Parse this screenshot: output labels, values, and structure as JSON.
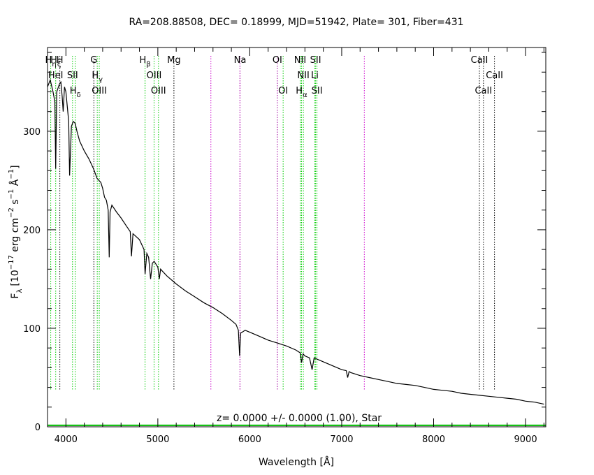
{
  "chart_data": {
    "type": "line",
    "title": "RA=208.88508, DEC= 0.18999, MJD=51942, Plate= 301, Fiber=431",
    "xlabel": "Wavelength [Å]",
    "ylabel": "F_λ [10^-17 erg cm^-2 s^-1 Å^-1]",
    "ylabel_parts": {
      "f": "F",
      "f_sub": "λ",
      "pre": "[10",
      "exp1": "−17",
      "mid": " erg cm",
      "exp2": "−2",
      "mid2": " s",
      "exp3": "−1",
      "mid3": " Å",
      "exp4": "−1",
      "end": "]"
    },
    "xlim": [
      3800,
      9220
    ],
    "ylim": [
      0,
      385
    ],
    "x_ticks": [
      4000,
      5000,
      6000,
      7000,
      8000,
      9000
    ],
    "y_ticks": [
      0,
      100,
      200,
      300
    ],
    "x_tick_labels": [
      "4000",
      "5000",
      "6000",
      "7000",
      "8000",
      "9000"
    ],
    "y_tick_labels": [
      "0",
      "100",
      "200",
      "300"
    ],
    "annotation": "z= 0.0000 +/- 0.0000 (1.00), Star",
    "colors": {
      "spectrum": "#000000",
      "model": "#00bb00",
      "emission": "#00cc00",
      "absorption": "#000000",
      "sky": "#cc00cc"
    },
    "lines": [
      {
        "label": "H",
        "sub": "η",
        "wavelength": 3835,
        "kind": "emission",
        "row": 0
      },
      {
        "label": "H",
        "sub": "ζ",
        "wavelength": 3889,
        "kind": "emission",
        "row": 0
      },
      {
        "label": "H",
        "sub": "",
        "wavelength": 3934,
        "kind": "absorption",
        "row": 0
      },
      {
        "label": "HeI",
        "sub": "",
        "wavelength": 3889,
        "kind": "emission",
        "row": 1
      },
      {
        "label": "SII",
        "sub": "",
        "wavelength": 4072,
        "kind": "emission",
        "row": 1
      },
      {
        "label": "H",
        "sub": "δ",
        "wavelength": 4102,
        "kind": "emission",
        "row": 2
      },
      {
        "label": "G",
        "sub": "",
        "wavelength": 4304,
        "kind": "absorption",
        "row": 0
      },
      {
        "label": "H",
        "sub": "γ",
        "wavelength": 4341,
        "kind": "emission",
        "row": 1
      },
      {
        "label": "OIII",
        "sub": "",
        "wavelength": 4363,
        "kind": "emission",
        "row": 2
      },
      {
        "label": "H",
        "sub": "β",
        "wavelength": 4861,
        "kind": "emission",
        "row": 0
      },
      {
        "label": "OIII",
        "sub": "",
        "wavelength": 4959,
        "kind": "emission",
        "row": 1
      },
      {
        "label": "OIII",
        "sub": "",
        "wavelength": 5007,
        "kind": "emission",
        "row": 2
      },
      {
        "label": "Mg",
        "sub": "",
        "wavelength": 5175,
        "kind": "absorption",
        "row": 0
      },
      {
        "label": "Na",
        "sub": "",
        "wavelength": 5894,
        "kind": "absorption",
        "row": 0
      },
      {
        "label": "OI",
        "sub": "",
        "wavelength": 6300,
        "kind": "emission",
        "row": 0
      },
      {
        "label": "OI",
        "sub": "",
        "wavelength": 6363,
        "kind": "emission",
        "row": 2
      },
      {
        "label": "NII",
        "sub": "",
        "wavelength": 6548,
        "kind": "emission",
        "row": 0
      },
      {
        "label": "NII",
        "sub": "",
        "wavelength": 6583,
        "kind": "emission",
        "row": 1
      },
      {
        "label": "H",
        "sub": "α",
        "wavelength": 6563,
        "kind": "emission",
        "row": 2
      },
      {
        "label": "SII",
        "sub": "",
        "wavelength": 6716,
        "kind": "emission",
        "row": 0
      },
      {
        "label": "Li",
        "sub": "",
        "wavelength": 6707,
        "kind": "emission",
        "row": 1
      },
      {
        "label": "SII",
        "sub": "",
        "wavelength": 6731,
        "kind": "emission",
        "row": 2
      },
      {
        "label": "CaII",
        "sub": "",
        "wavelength": 8498,
        "kind": "absorption",
        "row": 0
      },
      {
        "label": "CaII",
        "sub": "",
        "wavelength": 8662,
        "kind": "absorption",
        "row": 1
      },
      {
        "label": "CaII",
        "sub": "",
        "wavelength": 8542,
        "kind": "absorption",
        "row": 2
      }
    ],
    "sky_lines": [
      5577,
      5893,
      6300,
      7246
    ],
    "series": [
      {
        "kind": "spectrum",
        "x": [
          3800,
          3830,
          3860,
          3880,
          3889,
          3900,
          3930,
          3945,
          3960,
          3970,
          3985,
          4000,
          4030,
          4040,
          4060,
          4080,
          4101,
          4120,
          4150,
          4200,
          4250,
          4300,
          4340,
          4360,
          4380,
          4400,
          4420,
          4440,
          4460,
          4471,
          4480,
          4500,
          4550,
          4600,
          4650,
          4700,
          4713,
          4730,
          4800,
          4850,
          4861,
          4880,
          4900,
          4921,
          4940,
          4960,
          5000,
          5016,
          5030,
          5050,
          5100,
          5200,
          5300,
          5400,
          5500,
          5600,
          5700,
          5800,
          5850,
          5876,
          5890,
          5900,
          5950,
          6000,
          6100,
          6200,
          6300,
          6400,
          6500,
          6550,
          6563,
          6580,
          6600,
          6650,
          6678,
          6700,
          6800,
          6900,
          7000,
          7050,
          7065,
          7080,
          7100,
          7200,
          7250,
          7300,
          7400,
          7500,
          7600,
          7700,
          7800,
          7900,
          8000,
          8100,
          8200,
          8300,
          8400,
          8500,
          8600,
          8700,
          8800,
          8900,
          9000,
          9100,
          9200
        ],
        "y": [
          345,
          352,
          340,
          330,
          262,
          340,
          348,
          350,
          335,
          320,
          345,
          340,
          310,
          255,
          305,
          310,
          308,
          300,
          290,
          280,
          272,
          262,
          252,
          250,
          248,
          242,
          233,
          230,
          220,
          172,
          218,
          225,
          218,
          212,
          205,
          198,
          173,
          196,
          190,
          180,
          155,
          176,
          172,
          150,
          166,
          168,
          162,
          150,
          160,
          158,
          153,
          145,
          138,
          132,
          126,
          121,
          115,
          108,
          104,
          98,
          72,
          95,
          98,
          96,
          92,
          88,
          85,
          82,
          78,
          75,
          65,
          74,
          72,
          70,
          58,
          70,
          66,
          62,
          58,
          57,
          50,
          56,
          55,
          52,
          51,
          50,
          48,
          46,
          44,
          43,
          42,
          40,
          38,
          37,
          36,
          34,
          33,
          32,
          31,
          30,
          29,
          28,
          26,
          25,
          23
        ]
      },
      {
        "kind": "error",
        "x": [
          3800,
          9220
        ],
        "y": [
          1.5,
          1.5
        ]
      }
    ]
  }
}
